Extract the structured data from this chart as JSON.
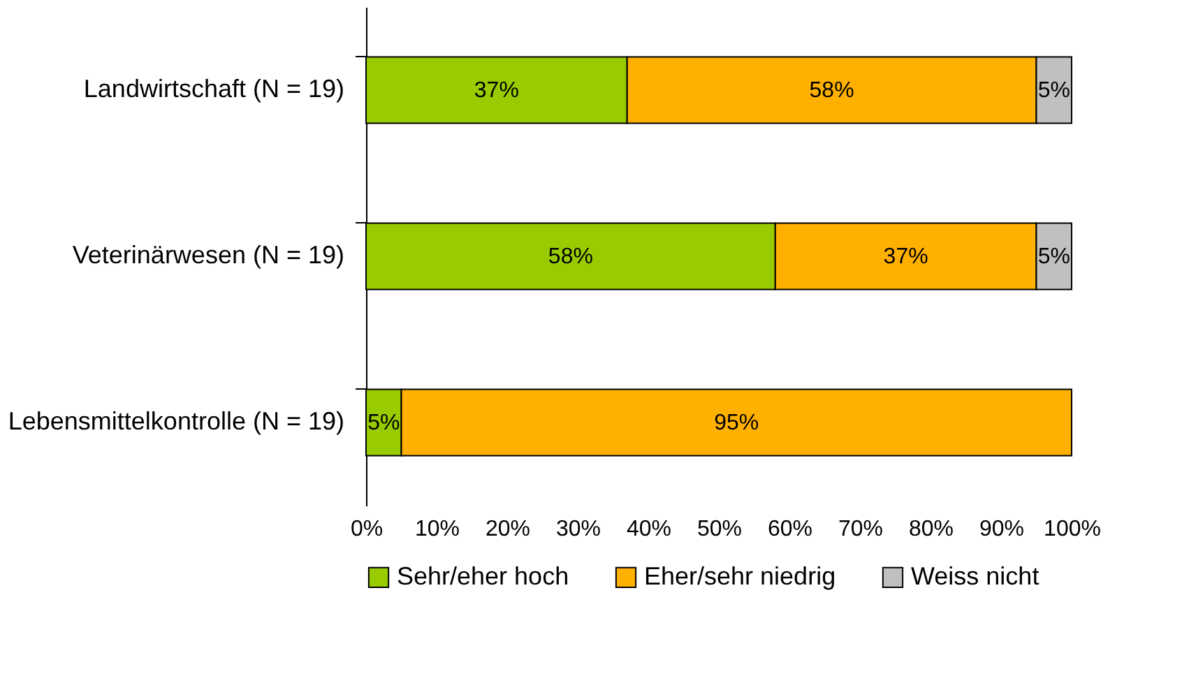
{
  "chart_data": {
    "type": "bar",
    "orientation": "horizontal",
    "stacked": true,
    "categories": [
      "Landwirtschaft (N = 19)",
      "Veterinärwesen (N = 19)",
      "Lebensmittelkontrolle (N = 19)"
    ],
    "series": [
      {
        "name": "Sehr/eher hoch",
        "color": "#99cc00",
        "values": [
          37,
          58,
          5
        ],
        "value_labels": [
          "37%",
          "58%",
          "5%"
        ]
      },
      {
        "name": "Eher/sehr niedrig",
        "color": "#ffb000",
        "values": [
          58,
          37,
          95
        ],
        "value_labels": [
          "58%",
          "37%",
          "95%"
        ]
      },
      {
        "name": "Weiss nicht",
        "color": "#c0c0c0",
        "values": [
          5,
          5,
          null
        ],
        "value_labels": [
          "5%",
          "5%",
          null
        ]
      }
    ],
    "xlim": [
      0,
      100
    ],
    "xticks": [
      {
        "value": 0,
        "label": "0%"
      },
      {
        "value": 10,
        "label": "10%"
      },
      {
        "value": 20,
        "label": "20%"
      },
      {
        "value": 30,
        "label": "30%"
      },
      {
        "value": 40,
        "label": "40%"
      },
      {
        "value": 50,
        "label": "50%"
      },
      {
        "value": 60,
        "label": "60%"
      },
      {
        "value": 70,
        "label": "70%"
      },
      {
        "value": 80,
        "label": "80%"
      },
      {
        "value": 90,
        "label": "90%"
      },
      {
        "value": 100,
        "label": "100%"
      }
    ],
    "grid": false,
    "legend": "bottom"
  }
}
